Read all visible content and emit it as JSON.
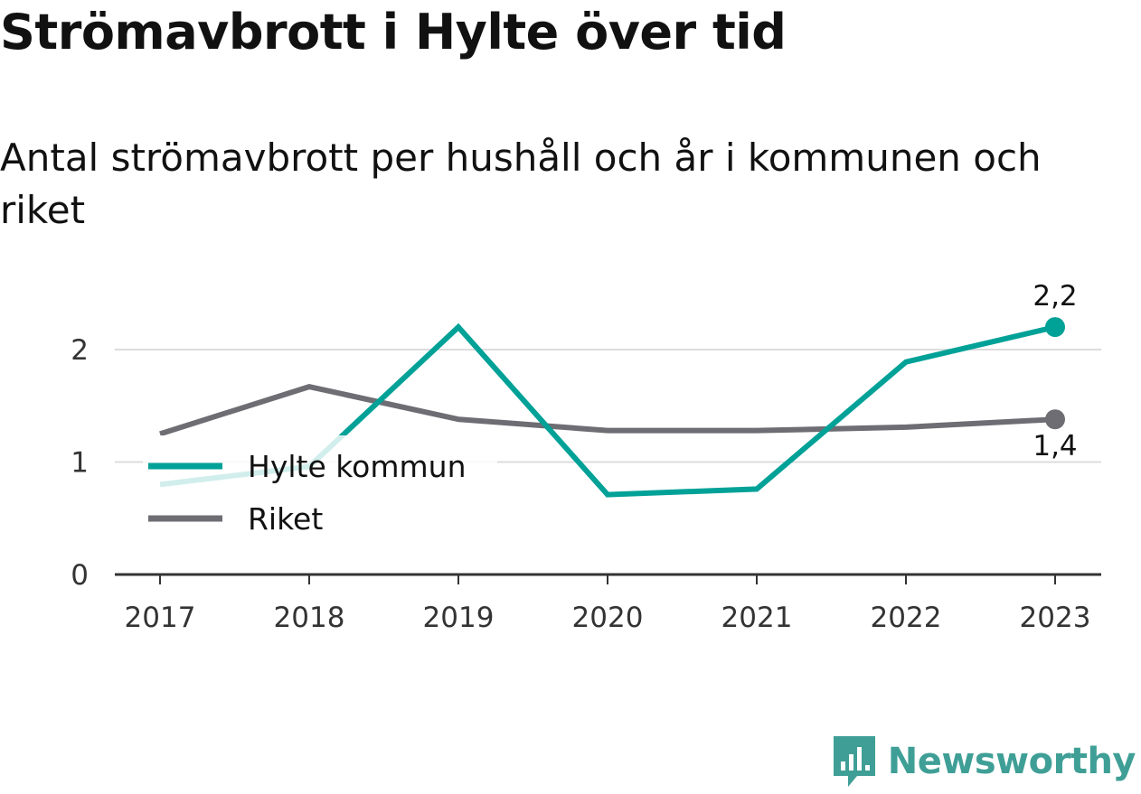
{
  "title": "Strömavbrott i Hylte över tid",
  "subtitle": "Antal strömavbrott per hushåll och år i kommunen och riket",
  "brand": {
    "name": "Newsworthy",
    "icon": "bar-chart-badge-icon",
    "color": "#3f9f96"
  },
  "chart_data": {
    "type": "line",
    "title": "Strömavbrott i Hylte över tid",
    "subtitle": "Antal strömavbrott per hushåll och år i kommunen och riket",
    "xlabel": "",
    "ylabel": "",
    "x": [
      "2017",
      "2018",
      "2019",
      "2020",
      "2021",
      "2022",
      "2023"
    ],
    "x_tick_labels": [
      "2017",
      "2018",
      "2019",
      "2020",
      "2021",
      "2022",
      "2023"
    ],
    "y_ticks": [
      0,
      1,
      2
    ],
    "y_tick_labels": [
      "0",
      "1",
      "2"
    ],
    "ylim": [
      0,
      2.4
    ],
    "grid": true,
    "legend": "left-middle",
    "series": [
      {
        "name": "Hylte kommun",
        "color": "#00a197",
        "values": [
          0.8,
          0.96,
          2.2,
          0.71,
          0.76,
          1.89,
          2.2
        ],
        "end_label": "2,2"
      },
      {
        "name": "Riket",
        "color": "#6e6d73",
        "values": [
          1.25,
          1.67,
          1.38,
          1.28,
          1.28,
          1.31,
          1.38
        ],
        "end_label": "1,4"
      }
    ]
  }
}
